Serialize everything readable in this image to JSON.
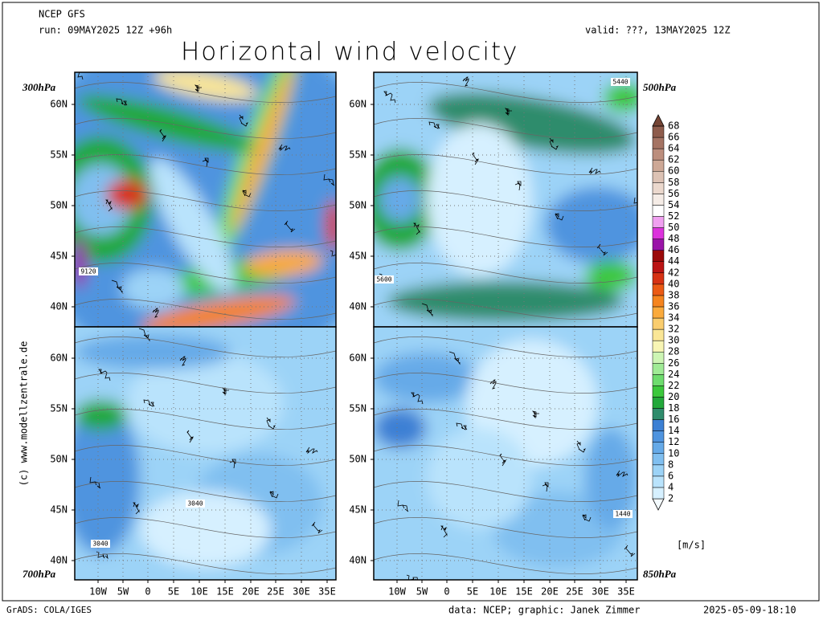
{
  "header": {
    "model": "NCEP GFS",
    "run": "run: 09MAY2025 12Z +96h",
    "valid": "valid: ???, 13MAY2025 12Z",
    "title": "Horizontal wind velocity"
  },
  "panels": [
    {
      "level": "300hPa",
      "contour_labels": [
        "9120"
      ]
    },
    {
      "level": "500hPa",
      "contour_labels": [
        "5440",
        "5600"
      ]
    },
    {
      "level": "700hPa",
      "contour_labels": [
        "3040",
        "3040"
      ]
    },
    {
      "level": "850hPa",
      "contour_labels": [
        "1440"
      ]
    }
  ],
  "lat_labels": [
    "60N",
    "55N",
    "50N",
    "45N",
    "40N"
  ],
  "lon_labels": [
    "10W",
    "5W",
    "0",
    "5E",
    "10E",
    "15E",
    "20E",
    "25E",
    "30E",
    "35E"
  ],
  "colorbar": {
    "unit": "[m/s]",
    "levels": [
      2,
      4,
      6,
      8,
      10,
      12,
      14,
      16,
      18,
      20,
      22,
      24,
      26,
      28,
      30,
      32,
      34,
      36,
      38,
      40,
      42,
      44,
      46,
      48,
      50,
      52,
      54,
      56,
      58,
      60,
      62,
      64,
      66,
      68
    ],
    "colors": [
      "#f4fbff",
      "#d6f0ff",
      "#b9e3fc",
      "#9cd3f7",
      "#80bff0",
      "#66aae8",
      "#4f94df",
      "#3c80d4",
      "#2f8c6c",
      "#22a83a",
      "#3cc83c",
      "#6edc6e",
      "#a0eb96",
      "#cdf5b4",
      "#f8f5b4",
      "#fae696",
      "#facd6e",
      "#faaa3c",
      "#f5841e",
      "#eb5a14",
      "#d73214",
      "#bb1414",
      "#9b0a0a",
      "#9a14a8",
      "#dc32dc",
      "#f0a0f0",
      "#ffffff",
      "#f5ece6",
      "#ebd8cd",
      "#dcc2b4",
      "#cda896",
      "#bc8e7d",
      "#a57464",
      "#8e5c4c",
      "#754535"
    ]
  },
  "footer": {
    "credit": "(c) www.modellzentrale.de",
    "software": "GrADS: COLA/IGES",
    "source": "data: NCEP; graphic: Janek Zimmer",
    "timestamp": "2025-05-09-18:10"
  }
}
